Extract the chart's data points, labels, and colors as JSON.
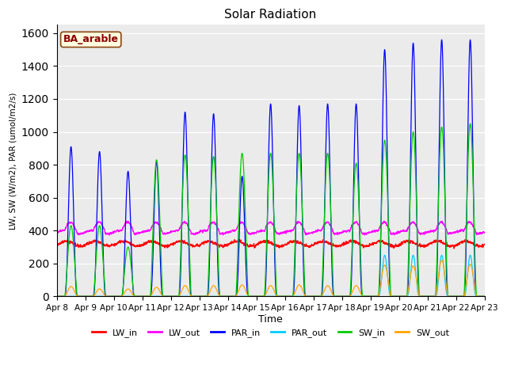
{
  "title": "Solar Radiation",
  "xlabel": "Time",
  "ylabel": "LW, SW (W/m2), PAR (umol/m2/s)",
  "site_label": "BA_arable",
  "ylim": [
    0,
    1650
  ],
  "x_tick_labels": [
    "Apr 8",
    "Apr 9",
    "Apr 10",
    "Apr 11",
    "Apr 12",
    "Apr 13",
    "Apr 14",
    "Apr 15",
    "Apr 16",
    "Apr 17",
    "Apr 18",
    "Apr 19",
    "Apr 20",
    "Apr 21",
    "Apr 22",
    "Apr 23"
  ],
  "colors": {
    "LW_in": "#ff0000",
    "LW_out": "#ff00ff",
    "PAR_in": "#0000ff",
    "PAR_out": "#00ccff",
    "SW_in": "#00cc00",
    "SW_out": "#ffa500"
  },
  "background_color": "#ebebeb",
  "figure_background": "#ffffff",
  "par_in_peaks": [
    910,
    880,
    760,
    820,
    1120,
    1110,
    730,
    1170,
    1160,
    1170,
    1170,
    1500,
    1540,
    1560,
    1560
  ],
  "par_out_peaks": [
    0,
    0,
    0,
    0,
    0,
    0,
    0,
    0,
    0,
    0,
    0,
    250,
    250,
    250,
    250
  ],
  "sw_in_peaks": [
    430,
    430,
    300,
    830,
    860,
    850,
    870,
    870,
    870,
    870,
    810,
    950,
    1000,
    1030,
    1050
  ],
  "sw_out_peaks": [
    60,
    45,
    45,
    55,
    65,
    65,
    70,
    65,
    70,
    65,
    65,
    190,
    185,
    220,
    195
  ],
  "lw_in_base": 320,
  "lw_out_base": 390,
  "lw_out_day_peak": 60
}
